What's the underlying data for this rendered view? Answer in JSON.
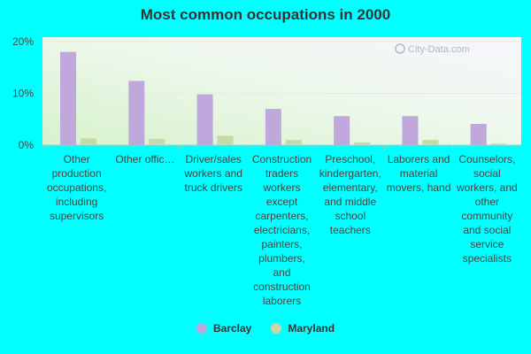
{
  "chart_data": {
    "type": "bar",
    "title": "Most common occupations in 2000",
    "categories": [
      "Other production occupations, including supervisors",
      "Other offic…",
      "Driver/sales workers and truck drivers",
      "Construction traders workers except carpenters, electricians, painters, plumbers, and construction laborers",
      "Preschool, kindergarten, elementary, and middle school teachers",
      "Laborers and material movers, hand",
      "Counselors, social workers, and other community and social service specialists"
    ],
    "series": [
      {
        "name": "Barclay",
        "color": "#c0a8dc",
        "values": [
          18.0,
          12.4,
          9.8,
          7.0,
          5.6,
          5.6,
          4.1
        ]
      },
      {
        "name": "Maryland",
        "color": "#c8d8a8",
        "values": [
          1.3,
          1.2,
          1.8,
          1.0,
          0.5,
          1.0,
          0.3
        ]
      }
    ],
    "yticks": [
      "0%",
      "10%",
      "20%"
    ],
    "ylim": [
      0,
      20
    ],
    "ytick_values": [
      0,
      10,
      20
    ],
    "xlabel": "",
    "ylabel": "",
    "legend_position": "bottom",
    "grid": true
  },
  "watermark": "City-Data.com",
  "colors": {
    "background": "#00ffff"
  }
}
